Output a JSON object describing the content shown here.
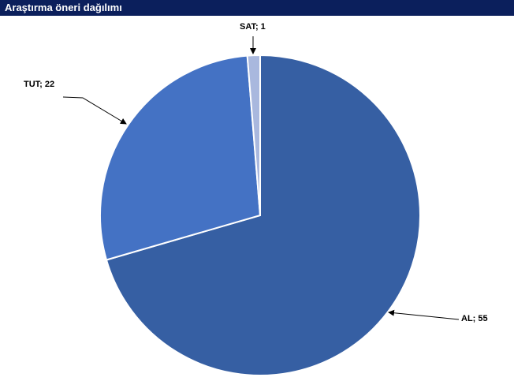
{
  "header": {
    "title": "Araştırma öneri dağılımı"
  },
  "colors": {
    "title_bg": "#0b1f5c",
    "title_text": "#ffffff",
    "slice_colors": [
      "#365fa3",
      "#4472c4",
      "#a9b8de"
    ]
  },
  "chart_data": {
    "type": "pie",
    "title": "Araştırma öneri dağılımı",
    "categories": [
      "AL",
      "TUT",
      "SAT"
    ],
    "values": [
      55,
      22,
      1
    ],
    "labels": [
      "AL; 55",
      "TUT;  22",
      "SAT; 1"
    ],
    "start_angle_deg": 0,
    "direction": "clockwise",
    "legend": "none"
  }
}
